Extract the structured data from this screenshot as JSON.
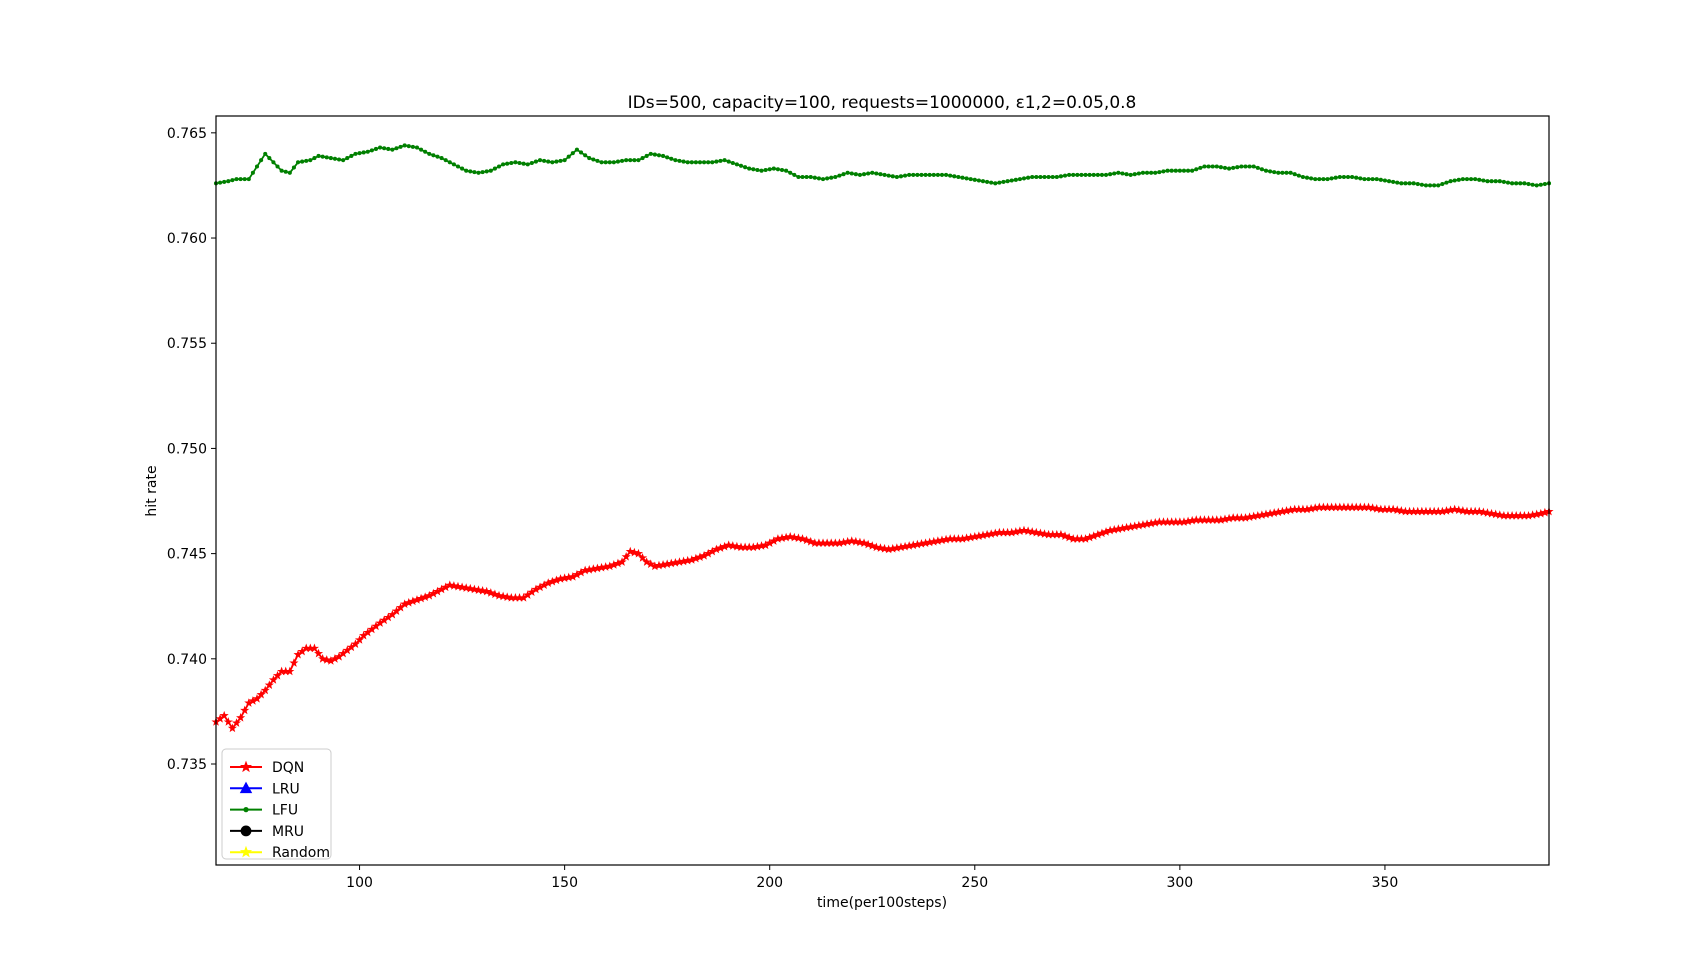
{
  "chart_data": {
    "type": "line",
    "title": "IDs=500, capacity=100, requests=1000000, ε1,2=0.05,0.8",
    "xlabel": "time(per100steps)",
    "ylabel": "hit rate",
    "xlim": [
      65,
      390
    ],
    "ylim": [
      0.7302,
      0.7658
    ],
    "xticks": [
      {
        "value": 100,
        "label": "100"
      },
      {
        "value": 150,
        "label": "150"
      },
      {
        "value": 200,
        "label": "200"
      },
      {
        "value": 250,
        "label": "250"
      },
      {
        "value": 300,
        "label": "300"
      },
      {
        "value": 350,
        "label": "350"
      }
    ],
    "yticks": [
      {
        "value": 0.735,
        "label": "0.735"
      },
      {
        "value": 0.74,
        "label": "0.740"
      },
      {
        "value": 0.745,
        "label": "0.745"
      },
      {
        "value": 0.75,
        "label": "0.750"
      },
      {
        "value": 0.755,
        "label": "0.755"
      },
      {
        "value": 0.76,
        "label": "0.760"
      },
      {
        "value": 0.765,
        "label": "0.765"
      }
    ],
    "grid": false,
    "legend_position": "lower-left",
    "legend": [
      {
        "name": "DQN",
        "color": "#ff0000",
        "marker": "star"
      },
      {
        "name": "LRU",
        "color": "#0000ff",
        "marker": "triangle"
      },
      {
        "name": "LFU",
        "color": "#008000",
        "marker": "dot"
      },
      {
        "name": "MRU",
        "color": "#000000",
        "marker": "circle"
      },
      {
        "name": "Random",
        "color": "#ffff00",
        "marker": "star"
      }
    ],
    "series": [
      {
        "name": "LFU",
        "color": "#008000",
        "marker": "dot",
        "points": [
          [
            65,
            0.7626
          ],
          [
            68,
            0.7627
          ],
          [
            70,
            0.7628
          ],
          [
            73,
            0.7628
          ],
          [
            75,
            0.7634
          ],
          [
            77,
            0.764
          ],
          [
            79,
            0.7636
          ],
          [
            81,
            0.7632
          ],
          [
            83,
            0.7631
          ],
          [
            85,
            0.7636
          ],
          [
            88,
            0.7637
          ],
          [
            90,
            0.7639
          ],
          [
            93,
            0.7638
          ],
          [
            96,
            0.7637
          ],
          [
            99,
            0.764
          ],
          [
            102,
            0.7641
          ],
          [
            105,
            0.7643
          ],
          [
            108,
            0.7642
          ],
          [
            111,
            0.7644
          ],
          [
            114,
            0.7643
          ],
          [
            117,
            0.764
          ],
          [
            120,
            0.7638
          ],
          [
            123,
            0.7635
          ],
          [
            126,
            0.7632
          ],
          [
            129,
            0.7631
          ],
          [
            132,
            0.7632
          ],
          [
            135,
            0.7635
          ],
          [
            138,
            0.7636
          ],
          [
            141,
            0.7635
          ],
          [
            144,
            0.7637
          ],
          [
            147,
            0.7636
          ],
          [
            150,
            0.7637
          ],
          [
            153,
            0.7642
          ],
          [
            156,
            0.7638
          ],
          [
            159,
            0.7636
          ],
          [
            162,
            0.7636
          ],
          [
            165,
            0.7637
          ],
          [
            168,
            0.7637
          ],
          [
            171,
            0.764
          ],
          [
            174,
            0.7639
          ],
          [
            177,
            0.7637
          ],
          [
            180,
            0.7636
          ],
          [
            183,
            0.7636
          ],
          [
            186,
            0.7636
          ],
          [
            189,
            0.7637
          ],
          [
            192,
            0.7635
          ],
          [
            195,
            0.7633
          ],
          [
            198,
            0.7632
          ],
          [
            201,
            0.7633
          ],
          [
            204,
            0.7632
          ],
          [
            207,
            0.7629
          ],
          [
            210,
            0.7629
          ],
          [
            213,
            0.7628
          ],
          [
            216,
            0.7629
          ],
          [
            219,
            0.7631
          ],
          [
            222,
            0.763
          ],
          [
            225,
            0.7631
          ],
          [
            228,
            0.763
          ],
          [
            231,
            0.7629
          ],
          [
            234,
            0.763
          ],
          [
            237,
            0.763
          ],
          [
            240,
            0.763
          ],
          [
            243,
            0.763
          ],
          [
            246,
            0.7629
          ],
          [
            249,
            0.7628
          ],
          [
            252,
            0.7627
          ],
          [
            255,
            0.7626
          ],
          [
            258,
            0.7627
          ],
          [
            261,
            0.7628
          ],
          [
            264,
            0.7629
          ],
          [
            267,
            0.7629
          ],
          [
            270,
            0.7629
          ],
          [
            273,
            0.763
          ],
          [
            276,
            0.763
          ],
          [
            279,
            0.763
          ],
          [
            282,
            0.763
          ],
          [
            285,
            0.7631
          ],
          [
            288,
            0.763
          ],
          [
            291,
            0.7631
          ],
          [
            294,
            0.7631
          ],
          [
            297,
            0.7632
          ],
          [
            300,
            0.7632
          ],
          [
            303,
            0.7632
          ],
          [
            306,
            0.7634
          ],
          [
            309,
            0.7634
          ],
          [
            312,
            0.7633
          ],
          [
            315,
            0.7634
          ],
          [
            318,
            0.7634
          ],
          [
            321,
            0.7632
          ],
          [
            324,
            0.7631
          ],
          [
            327,
            0.7631
          ],
          [
            330,
            0.7629
          ],
          [
            333,
            0.7628
          ],
          [
            336,
            0.7628
          ],
          [
            339,
            0.7629
          ],
          [
            342,
            0.7629
          ],
          [
            345,
            0.7628
          ],
          [
            348,
            0.7628
          ],
          [
            351,
            0.7627
          ],
          [
            354,
            0.7626
          ],
          [
            357,
            0.7626
          ],
          [
            360,
            0.7625
          ],
          [
            363,
            0.7625
          ],
          [
            366,
            0.7627
          ],
          [
            369,
            0.7628
          ],
          [
            372,
            0.7628
          ],
          [
            375,
            0.7627
          ],
          [
            378,
            0.7627
          ],
          [
            381,
            0.7626
          ],
          [
            384,
            0.7626
          ],
          [
            387,
            0.7625
          ],
          [
            390,
            0.7626
          ]
        ]
      },
      {
        "name": "DQN",
        "color": "#ff0000",
        "marker": "star",
        "points": [
          [
            65,
            0.737
          ],
          [
            67,
            0.7373
          ],
          [
            69,
            0.7367
          ],
          [
            71,
            0.7372
          ],
          [
            73,
            0.7379
          ],
          [
            75,
            0.7381
          ],
          [
            77,
            0.7385
          ],
          [
            79,
            0.739
          ],
          [
            81,
            0.7394
          ],
          [
            83,
            0.7394
          ],
          [
            85,
            0.7402
          ],
          [
            87,
            0.7405
          ],
          [
            89,
            0.7405
          ],
          [
            91,
            0.74
          ],
          [
            93,
            0.7399
          ],
          [
            95,
            0.7401
          ],
          [
            97,
            0.7404
          ],
          [
            99,
            0.7407
          ],
          [
            101,
            0.7411
          ],
          [
            103,
            0.7414
          ],
          [
            105,
            0.7417
          ],
          [
            108,
            0.7421
          ],
          [
            111,
            0.7426
          ],
          [
            114,
            0.7428
          ],
          [
            117,
            0.743
          ],
          [
            120,
            0.7433
          ],
          [
            122,
            0.7435
          ],
          [
            125,
            0.7434
          ],
          [
            128,
            0.7433
          ],
          [
            131,
            0.7432
          ],
          [
            134,
            0.743
          ],
          [
            137,
            0.7429
          ],
          [
            140,
            0.7429
          ],
          [
            143,
            0.7433
          ],
          [
            146,
            0.7436
          ],
          [
            149,
            0.7438
          ],
          [
            152,
            0.7439
          ],
          [
            155,
            0.7442
          ],
          [
            158,
            0.7443
          ],
          [
            161,
            0.7444
          ],
          [
            164,
            0.7446
          ],
          [
            166,
            0.7451
          ],
          [
            168,
            0.745
          ],
          [
            170,
            0.7446
          ],
          [
            172,
            0.7444
          ],
          [
            175,
            0.7445
          ],
          [
            178,
            0.7446
          ],
          [
            181,
            0.7447
          ],
          [
            184,
            0.7449
          ],
          [
            187,
            0.7452
          ],
          [
            190,
            0.7454
          ],
          [
            193,
            0.7453
          ],
          [
            196,
            0.7453
          ],
          [
            199,
            0.7454
          ],
          [
            202,
            0.7457
          ],
          [
            205,
            0.7458
          ],
          [
            208,
            0.7457
          ],
          [
            211,
            0.7455
          ],
          [
            214,
            0.7455
          ],
          [
            217,
            0.7455
          ],
          [
            220,
            0.7456
          ],
          [
            223,
            0.7455
          ],
          [
            226,
            0.7453
          ],
          [
            229,
            0.7452
          ],
          [
            232,
            0.7453
          ],
          [
            235,
            0.7454
          ],
          [
            238,
            0.7455
          ],
          [
            241,
            0.7456
          ],
          [
            244,
            0.7457
          ],
          [
            247,
            0.7457
          ],
          [
            250,
            0.7458
          ],
          [
            253,
            0.7459
          ],
          [
            256,
            0.746
          ],
          [
            259,
            0.746
          ],
          [
            262,
            0.7461
          ],
          [
            265,
            0.746
          ],
          [
            268,
            0.7459
          ],
          [
            271,
            0.7459
          ],
          [
            274,
            0.7457
          ],
          [
            277,
            0.7457
          ],
          [
            280,
            0.7459
          ],
          [
            283,
            0.7461
          ],
          [
            286,
            0.7462
          ],
          [
            289,
            0.7463
          ],
          [
            292,
            0.7464
          ],
          [
            295,
            0.7465
          ],
          [
            298,
            0.7465
          ],
          [
            301,
            0.7465
          ],
          [
            304,
            0.7466
          ],
          [
            307,
            0.7466
          ],
          [
            310,
            0.7466
          ],
          [
            313,
            0.7467
          ],
          [
            316,
            0.7467
          ],
          [
            319,
            0.7468
          ],
          [
            322,
            0.7469
          ],
          [
            325,
            0.747
          ],
          [
            328,
            0.7471
          ],
          [
            331,
            0.7471
          ],
          [
            334,
            0.7472
          ],
          [
            337,
            0.7472
          ],
          [
            340,
            0.7472
          ],
          [
            343,
            0.7472
          ],
          [
            346,
            0.7472
          ],
          [
            349,
            0.7471
          ],
          [
            352,
            0.7471
          ],
          [
            355,
            0.747
          ],
          [
            358,
            0.747
          ],
          [
            361,
            0.747
          ],
          [
            364,
            0.747
          ],
          [
            367,
            0.7471
          ],
          [
            370,
            0.747
          ],
          [
            373,
            0.747
          ],
          [
            376,
            0.7469
          ],
          [
            379,
            0.7468
          ],
          [
            382,
            0.7468
          ],
          [
            385,
            0.7468
          ],
          [
            388,
            0.7469
          ],
          [
            390,
            0.747
          ]
        ]
      }
    ]
  }
}
